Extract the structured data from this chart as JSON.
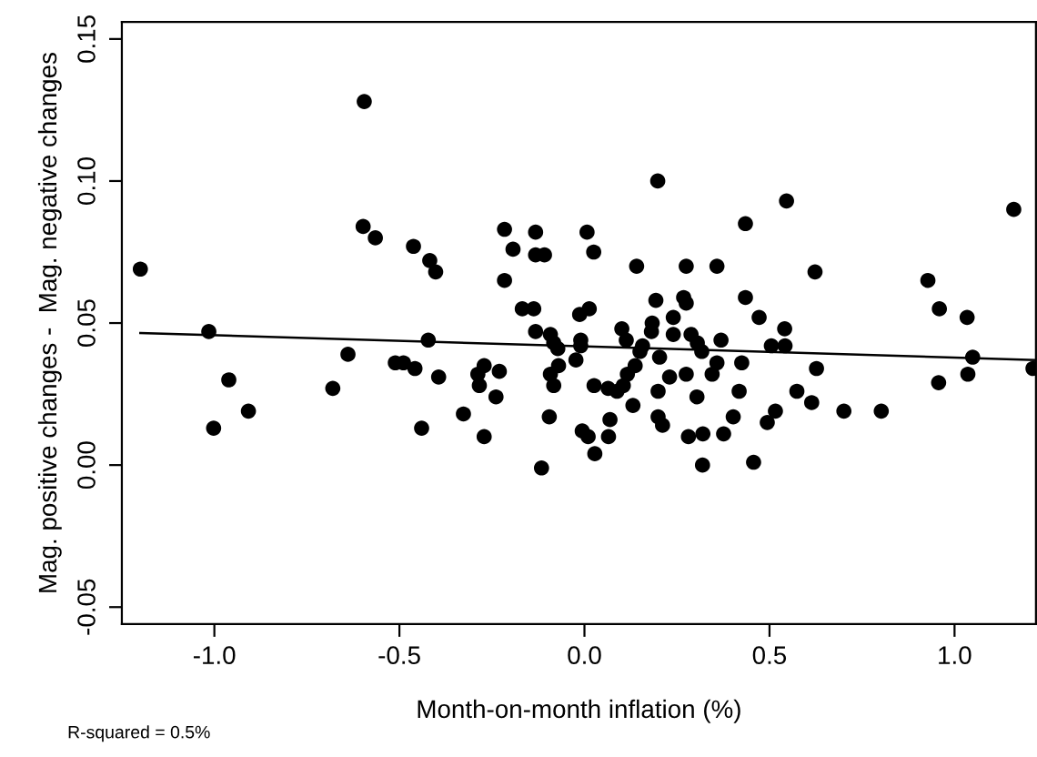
{
  "chart_data": {
    "type": "scatter",
    "xlabel": "Month-on-month inflation (%)",
    "ylabel": "Mag. positive changes -  Mag. negative changes",
    "annotations": [
      "R-squared = 0.5%"
    ],
    "xlim": [
      -1.25,
      1.22
    ],
    "ylim": [
      -0.056,
      0.156
    ],
    "xticks": [
      {
        "value": -1.0,
        "label": "-1.0"
      },
      {
        "value": -0.5,
        "label": "-0.5"
      },
      {
        "value": 0.0,
        "label": "0.0"
      },
      {
        "value": 0.5,
        "label": "0.5"
      },
      {
        "value": 1.0,
        "label": "1.0"
      }
    ],
    "yticks": [
      {
        "value": -0.05,
        "label": "-0.05"
      },
      {
        "value": 0.0,
        "label": "0.00"
      },
      {
        "value": 0.05,
        "label": "0.05"
      },
      {
        "value": 0.1,
        "label": "0.10"
      },
      {
        "value": 0.15,
        "label": "0.15"
      }
    ],
    "grid": false,
    "marker": "circle",
    "series": [
      {
        "color": "#000000",
        "x": [
          -1.2,
          -1.015,
          -0.595,
          -0.598,
          -0.565,
          -0.462,
          -0.418,
          -0.402,
          -0.216,
          -0.193,
          -0.132,
          -0.132,
          -0.108,
          -0.216,
          -0.168,
          -0.137,
          -0.132,
          -0.639,
          -0.422,
          -0.961,
          -1.002,
          -0.908,
          -0.68,
          -0.511,
          -0.489,
          -0.458,
          -0.44,
          -0.394,
          -0.327,
          -0.288,
          -0.284,
          -0.271,
          -0.271,
          -0.239,
          -0.23,
          -0.116,
          -0.095,
          -0.092,
          -0.083,
          -0.07,
          -0.023,
          -0.01,
          -0.01,
          -0.006,
          0.01,
          0.026,
          0.028,
          0.064,
          0.065,
          0.069,
          0.088,
          0.105,
          0.116,
          0.131,
          0.137,
          0.15,
          0.157,
          0.199,
          0.199,
          0.211,
          0.203,
          0.23,
          0.24,
          0.275,
          0.281,
          0.304,
          0.32,
          0.319,
          0.345,
          0.358,
          0.317,
          0.369,
          0.376,
          0.402,
          0.418,
          0.425,
          0.457,
          0.494,
          0.516,
          0.505,
          0.542,
          0.574,
          0.614,
          0.627,
          0.701,
          0.802,
          0.957,
          1.036,
          1.049,
          1.212,
          -0.092,
          -0.072,
          -0.083,
          0.007,
          0.025,
          -0.013,
          0.013,
          0.101,
          0.113,
          0.141,
          0.193,
          0.198,
          0.183,
          0.181,
          0.24,
          0.268,
          0.275,
          0.275,
          0.288,
          0.305,
          0.358,
          0.435,
          0.435,
          0.472,
          0.541,
          0.546,
          0.623,
          0.928,
          0.959,
          1.034,
          1.16
        ],
        "values": [
          0.069,
          0.047,
          0.128,
          0.084,
          0.08,
          0.077,
          0.072,
          0.068,
          0.083,
          0.076,
          0.082,
          0.074,
          0.074,
          0.065,
          0.055,
          0.055,
          0.047,
          0.039,
          0.044,
          0.03,
          0.013,
          0.019,
          0.027,
          0.036,
          0.036,
          0.034,
          0.013,
          0.031,
          0.018,
          0.032,
          0.028,
          0.035,
          0.01,
          0.024,
          0.033,
          -0.001,
          0.017,
          0.032,
          0.028,
          0.035,
          0.037,
          0.044,
          0.042,
          0.012,
          0.01,
          0.028,
          0.004,
          0.027,
          0.01,
          0.016,
          0.026,
          0.028,
          0.032,
          0.021,
          0.035,
          0.04,
          0.042,
          0.026,
          0.017,
          0.014,
          0.038,
          0.031,
          0.046,
          0.032,
          0.01,
          0.024,
          0.011,
          0.0,
          0.032,
          0.036,
          0.04,
          0.044,
          0.011,
          0.017,
          0.026,
          0.036,
          0.001,
          0.015,
          0.019,
          0.042,
          0.042,
          0.026,
          0.022,
          0.034,
          0.019,
          0.019,
          0.029,
          0.032,
          0.038,
          0.034,
          0.046,
          0.041,
          0.043,
          0.082,
          0.075,
          0.053,
          0.055,
          0.048,
          0.044,
          0.07,
          0.058,
          0.1,
          0.05,
          0.047,
          0.052,
          0.059,
          0.057,
          0.07,
          0.046,
          0.043,
          0.07,
          0.085,
          0.059,
          0.052,
          0.048,
          0.093,
          0.068,
          0.065,
          0.055,
          0.052,
          0.09
        ]
      },
      {
        "type": "line",
        "color": "#000000",
        "marker": "none",
        "x": [
          -1.2,
          1.22
        ],
        "values": [
          0.0465,
          0.037
        ]
      }
    ]
  }
}
